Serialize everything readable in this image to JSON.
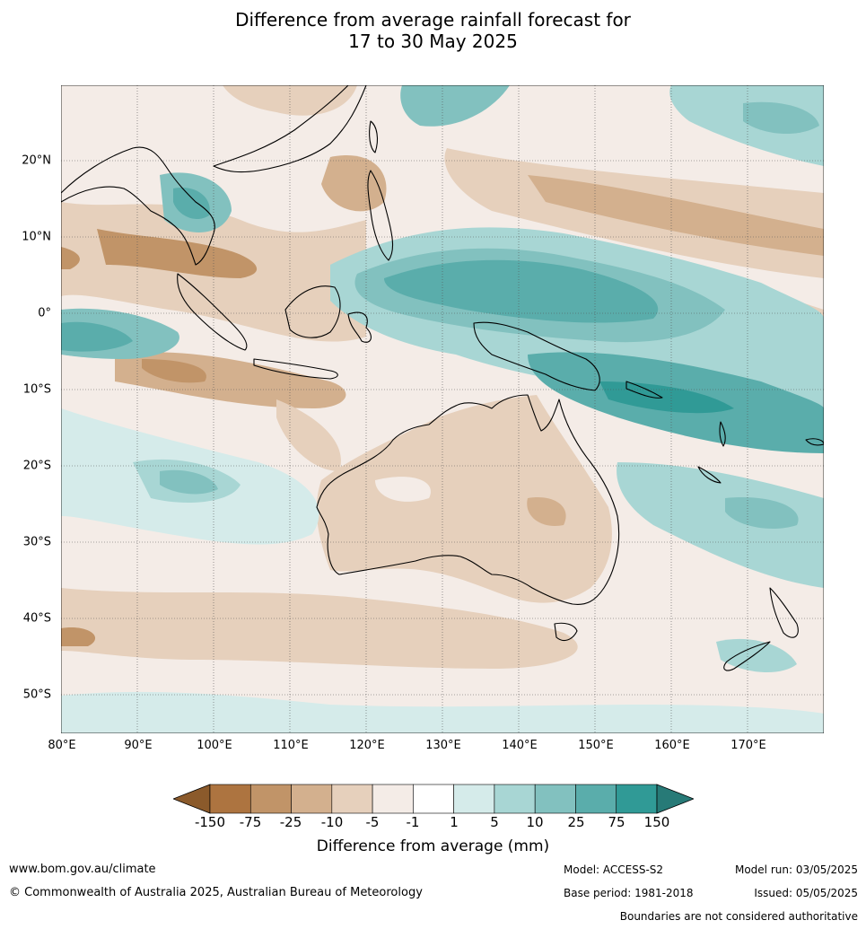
{
  "title": {
    "line1": "Difference from average rainfall forecast for",
    "line2": "17 to 30 May 2025"
  },
  "map": {
    "lat_labels": [
      "20°N",
      "10°N",
      "0°",
      "10°S",
      "20°S",
      "30°S",
      "40°S",
      "50°S"
    ],
    "lon_labels": [
      "80°E",
      "90°E",
      "100°E",
      "110°E",
      "120°E",
      "130°E",
      "140°E",
      "150°E",
      "160°E",
      "170°E"
    ],
    "extent": {
      "lon": [
        80,
        180
      ],
      "lat": [
        -55,
        30
      ]
    }
  },
  "legend": {
    "title": "Difference from average (mm)",
    "ticks": [
      "-150",
      "-75",
      "-25",
      "-10",
      "-5",
      "-1",
      "1",
      "5",
      "10",
      "25",
      "75",
      "150"
    ],
    "colors": [
      "#8b5a2b",
      "#ad7440",
      "#c19468",
      "#d3b08e",
      "#e6d0bc",
      "#f4ece7",
      "#ffffff",
      "#d5ebea",
      "#a8d6d4",
      "#82c1bf",
      "#5aadab",
      "#309a96",
      "#277a77"
    ]
  },
  "footer": {
    "website": "www.bom.gov.au/climate",
    "copyright": "© Commonwealth of Australia 2025, Australian Bureau of Meteorology",
    "model": "Model: ACCESS-S2",
    "base_period": "Base period: 1981-2018",
    "model_run": "Model run: 03/05/2025",
    "issued": "Issued: 05/05/2025",
    "disclaimer": "Boundaries are not considered authoritative"
  }
}
